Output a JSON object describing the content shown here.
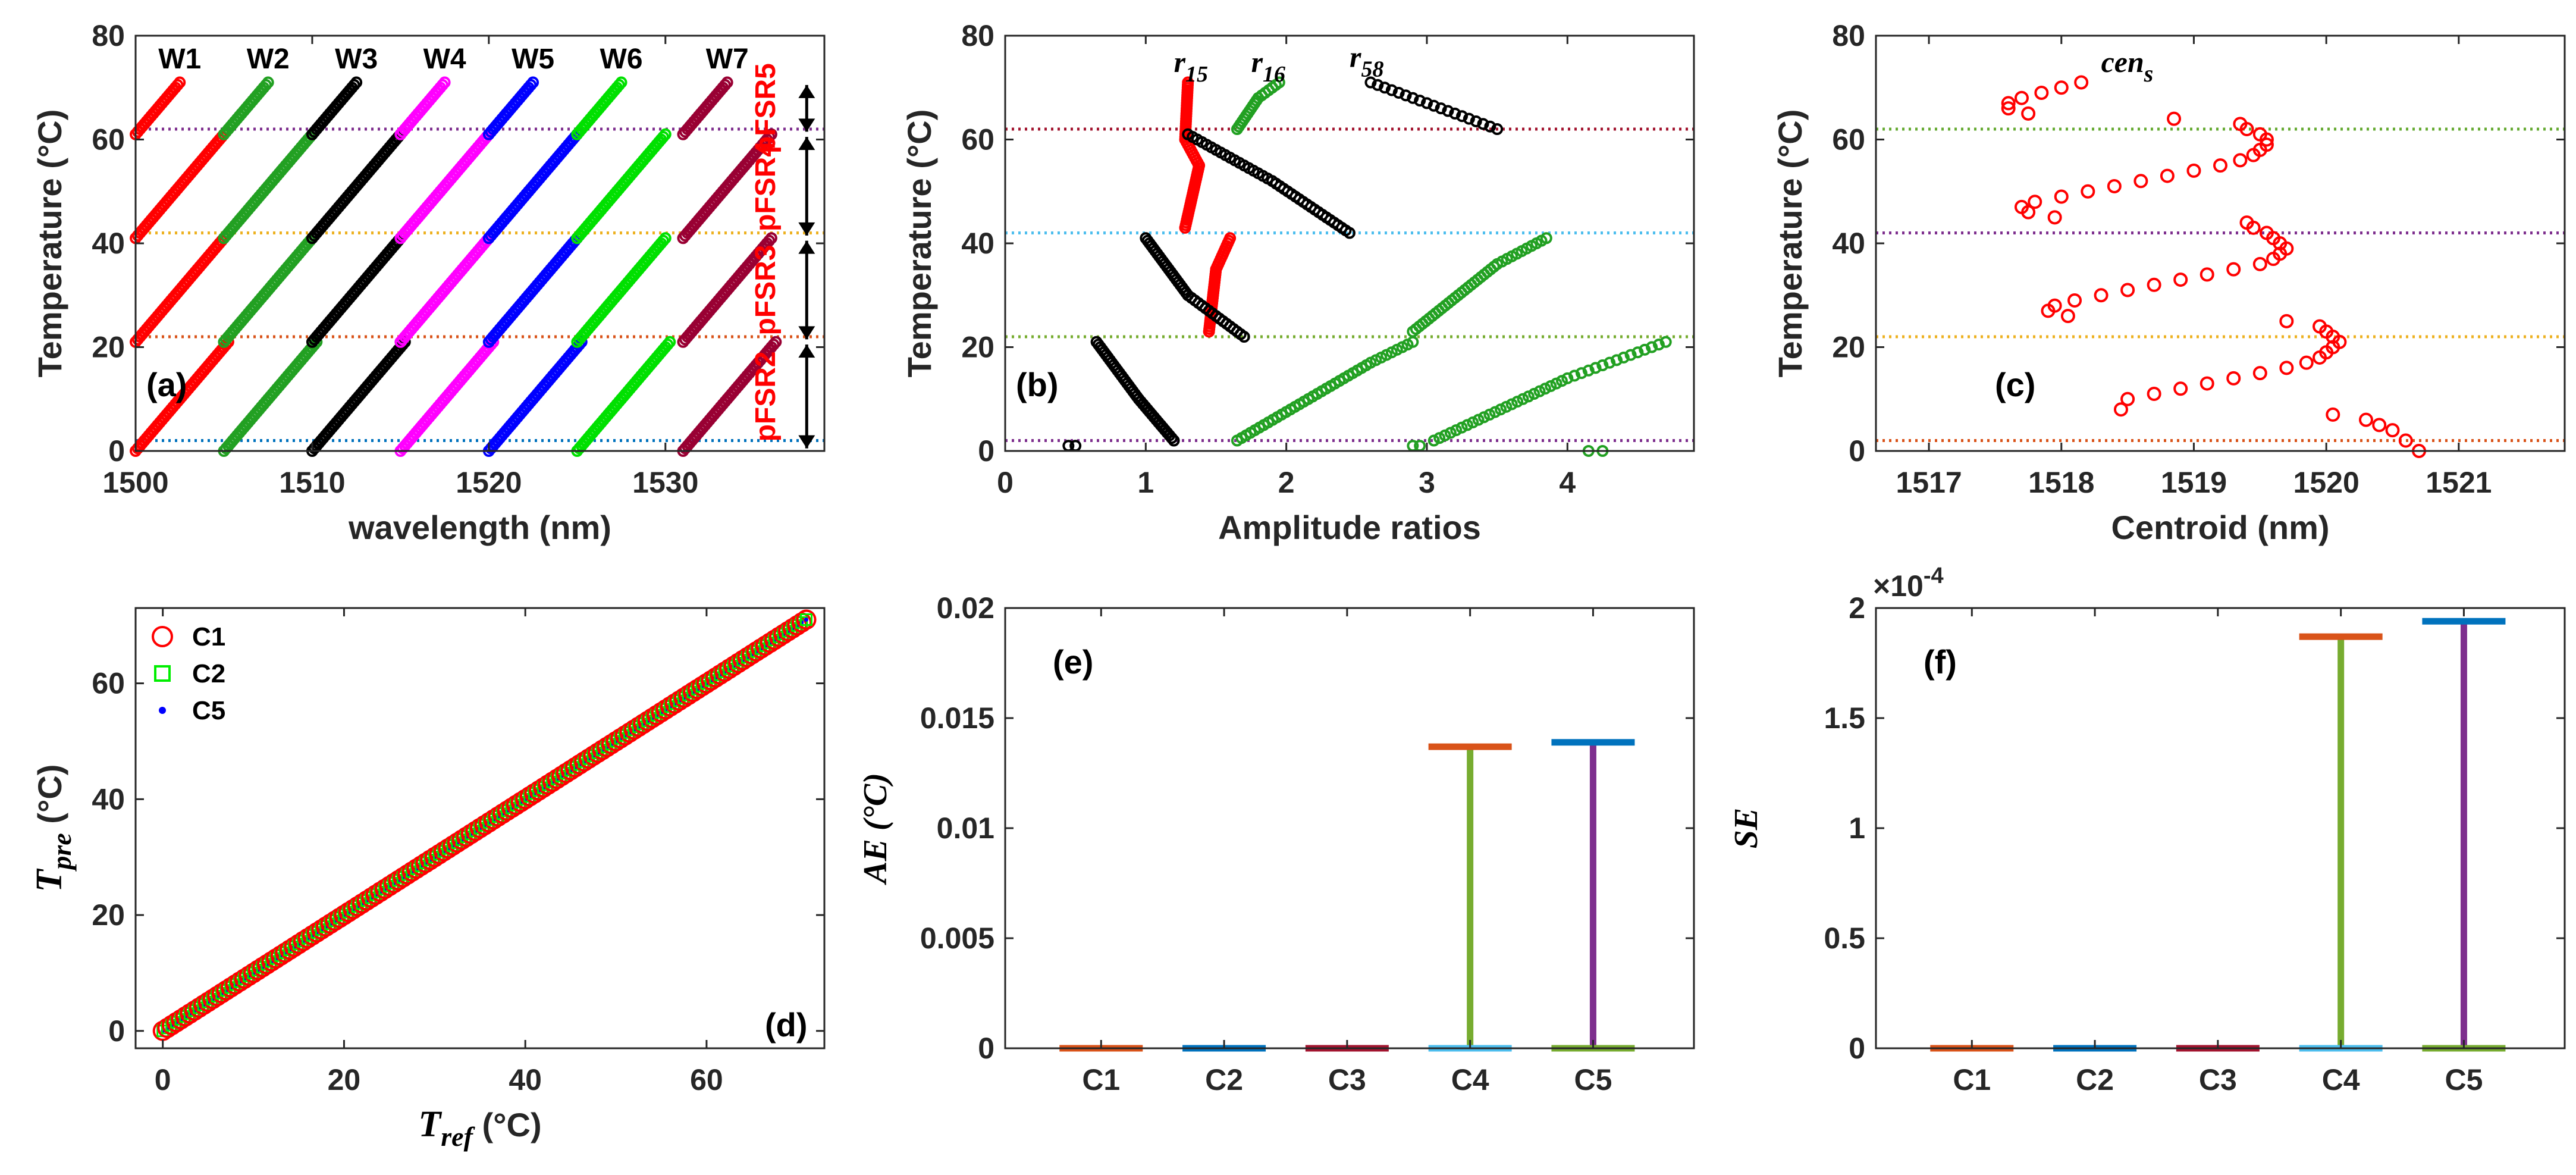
{
  "figure": {
    "palette": {
      "red": "#ff0000",
      "green": "#22a022",
      "black": "#000000",
      "magenta": "#ff00ff",
      "blue": "#0000ff",
      "lime": "#00e000",
      "maroon": "#990033",
      "purple": "#7e2f8e",
      "orange": "#edb120",
      "darkorange": "#d95319",
      "mblue": "#0072bd",
      "dkred": "#a2142f",
      "olive": "#77ac30",
      "cyan": "#4dbeee",
      "teal": "#33bbdd",
      "olivegreen": "#66aa33"
    }
  },
  "chart_data": [
    {
      "id": "a",
      "type": "scatter",
      "panel_label": "(a)",
      "xlabel": "wavelength (nm)",
      "ylabel": "Temperature (°C)",
      "xlim": [
        1500,
        1539
      ],
      "ylim": [
        0,
        80
      ],
      "xticks": [
        1500,
        1510,
        1520,
        1530
      ],
      "yticks": [
        0,
        20,
        40,
        60,
        80
      ],
      "sensitivity_nm_per_C": 0.1,
      "segment_breaks_C": [
        0,
        21,
        41,
        61,
        71
      ],
      "series": [
        {
          "name": "W1",
          "color": "red",
          "start_nm": 1500
        },
        {
          "name": "W2",
          "color": "green",
          "start_nm": 1505
        },
        {
          "name": "W3",
          "color": "black",
          "start_nm": 1510
        },
        {
          "name": "W4",
          "color": "magenta",
          "start_nm": 1515
        },
        {
          "name": "W5",
          "color": "blue",
          "start_nm": 1520
        },
        {
          "name": "W6",
          "color": "lime",
          "start_nm": 1525
        },
        {
          "name": "W7",
          "color": "maroon",
          "start_nm": 1531
        }
      ],
      "hlines": [
        {
          "y": 2,
          "color": "mblue"
        },
        {
          "y": 22,
          "color": "darkorange"
        },
        {
          "y": 42,
          "color": "orange"
        },
        {
          "y": 62,
          "color": "purple"
        }
      ],
      "side_labels": [
        "pFSR2",
        "pFSR3",
        "pFSR4",
        "pFSR5"
      ],
      "side_label_color": "red"
    },
    {
      "id": "b",
      "type": "scatter",
      "panel_label": "(b)",
      "xlabel": "Amplitude ratios",
      "ylabel": "Temperature (°C)",
      "xlim": [
        0,
        4.9
      ],
      "ylim": [
        0,
        80
      ],
      "xticks": [
        0,
        1,
        2,
        3,
        4
      ],
      "yticks": [
        0,
        20,
        40,
        60,
        80
      ],
      "annotations": [
        {
          "base": "r",
          "sub": "15",
          "x": 1.2,
          "y": 73
        },
        {
          "base": "r",
          "sub": "16",
          "x": 1.75,
          "y": 73
        },
        {
          "base": "r",
          "sub": "58",
          "x": 2.45,
          "y": 74
        }
      ],
      "series": [
        {
          "name": "r15",
          "color": "red",
          "segments": [
            [
              1.45,
              23,
              1.5,
              35,
              1.6,
              41
            ],
            [
              1.28,
              43,
              1.38,
              55,
              1.28,
              60,
              1.3,
              71
            ]
          ]
        },
        {
          "name": "r16",
          "color": "green",
          "segments": [
            [
              1.65,
              2,
              2.6,
              17,
              2.9,
              21
            ],
            [
              2.9,
              23,
              3.5,
              36,
              3.85,
              41
            ],
            [
              1.65,
              62,
              1.8,
              68,
              1.95,
              71
            ],
            [
              2.9,
              1,
              2.95,
              1
            ],
            [
              3.05,
              2,
              4.0,
              14,
              4.7,
              21
            ],
            [
              4.15,
              0,
              4.25,
              0
            ]
          ]
        },
        {
          "name": "r58",
          "color": "black",
          "segments": [
            [
              0.45,
              1,
              0.5,
              1
            ],
            [
              0.65,
              21,
              0.95,
              10,
              1.2,
              2
            ],
            [
              1.0,
              41,
              1.3,
              30,
              1.7,
              22
            ],
            [
              1.3,
              61,
              1.9,
              52,
              2.45,
              42
            ],
            [
              2.6,
              71,
              3.1,
              66,
              3.5,
              62
            ]
          ]
        }
      ],
      "hlines": [
        {
          "y": 2,
          "color": "purple"
        },
        {
          "y": 22,
          "color": "olive"
        },
        {
          "y": 42,
          "color": "cyan"
        },
        {
          "y": 62,
          "color": "dkred"
        }
      ]
    },
    {
      "id": "c",
      "type": "scatter",
      "panel_label": "(c)",
      "xlabel": "Centroid (nm)",
      "ylabel": "Temperature (°C)",
      "xlim": [
        1516.6,
        1521.8
      ],
      "ylim": [
        0,
        80
      ],
      "xticks": [
        1517,
        1518,
        1519,
        1520,
        1521
      ],
      "yticks": [
        0,
        20,
        40,
        60,
        80
      ],
      "annotation": {
        "base": "cen",
        "sub": "s",
        "x": 1518.3,
        "y": 73
      },
      "series_color": "red",
      "points": [
        [
          1520.7,
          0
        ],
        [
          1520.6,
          2
        ],
        [
          1520.5,
          4
        ],
        [
          1520.4,
          5
        ],
        [
          1520.3,
          6
        ],
        [
          1520.05,
          7
        ],
        [
          1518.45,
          8
        ],
        [
          1518.5,
          10
        ],
        [
          1518.7,
          11
        ],
        [
          1518.9,
          12
        ],
        [
          1519.1,
          13
        ],
        [
          1519.3,
          14
        ],
        [
          1519.5,
          15
        ],
        [
          1519.7,
          16
        ],
        [
          1519.85,
          17
        ],
        [
          1519.95,
          18
        ],
        [
          1520.0,
          19
        ],
        [
          1520.05,
          20
        ],
        [
          1520.1,
          21
        ],
        [
          1520.05,
          22
        ],
        [
          1520.0,
          23
        ],
        [
          1519.95,
          24
        ],
        [
          1519.7,
          25
        ],
        [
          1518.05,
          26
        ],
        [
          1517.9,
          27
        ],
        [
          1517.95,
          28
        ],
        [
          1518.1,
          29
        ],
        [
          1518.3,
          30
        ],
        [
          1518.5,
          31
        ],
        [
          1518.7,
          32
        ],
        [
          1518.9,
          33
        ],
        [
          1519.1,
          34
        ],
        [
          1519.3,
          35
        ],
        [
          1519.5,
          36
        ],
        [
          1519.6,
          37
        ],
        [
          1519.65,
          38
        ],
        [
          1519.7,
          39
        ],
        [
          1519.65,
          40
        ],
        [
          1519.6,
          41
        ],
        [
          1519.55,
          42
        ],
        [
          1519.45,
          43
        ],
        [
          1519.4,
          44
        ],
        [
          1517.95,
          45
        ],
        [
          1517.75,
          46
        ],
        [
          1517.7,
          47
        ],
        [
          1517.8,
          48
        ],
        [
          1518.0,
          49
        ],
        [
          1518.2,
          50
        ],
        [
          1518.4,
          51
        ],
        [
          1518.6,
          52
        ],
        [
          1518.8,
          53
        ],
        [
          1519.0,
          54
        ],
        [
          1519.2,
          55
        ],
        [
          1519.35,
          56
        ],
        [
          1519.45,
          57
        ],
        [
          1519.5,
          58
        ],
        [
          1519.55,
          59
        ],
        [
          1519.55,
          60
        ],
        [
          1519.5,
          61
        ],
        [
          1519.4,
          62
        ],
        [
          1519.35,
          63
        ],
        [
          1518.85,
          64
        ],
        [
          1517.75,
          65
        ],
        [
          1517.6,
          66
        ],
        [
          1517.6,
          67
        ],
        [
          1517.7,
          68
        ],
        [
          1517.85,
          69
        ],
        [
          1518.0,
          70
        ],
        [
          1518.15,
          71
        ]
      ],
      "hlines": [
        {
          "y": 2,
          "color": "darkorange"
        },
        {
          "y": 22,
          "color": "orange"
        },
        {
          "y": 42,
          "color": "purple"
        },
        {
          "y": 62,
          "color": "olivegreen"
        }
      ]
    },
    {
      "id": "d",
      "type": "scatter",
      "panel_label": "(d)",
      "xlabel_base": "T",
      "xlabel_sub": "ref",
      "xlabel_unit": "(°C)",
      "ylabel_base": "T",
      "ylabel_sub": "pre",
      "ylabel_unit": "(°C)",
      "xlim": [
        -3,
        73
      ],
      "ylim": [
        -3,
        73
      ],
      "xticks": [
        0,
        20,
        40,
        60
      ],
      "yticks": [
        0,
        20,
        40,
        60
      ],
      "x_range": [
        0,
        71
      ],
      "step": 0.5,
      "legend": [
        {
          "label": "C1",
          "marker": "circle",
          "color": "red"
        },
        {
          "label": "C2",
          "marker": "square",
          "color": "#00ee00"
        },
        {
          "label": "C5",
          "marker": "dot",
          "color": "blue"
        }
      ]
    },
    {
      "id": "e",
      "type": "bar",
      "panel_label": "(e)",
      "ylabel": "AE (°C)",
      "categories": [
        "C1",
        "C2",
        "C3",
        "C4",
        "C5"
      ],
      "ylim": [
        0,
        0.02
      ],
      "yticks": [
        0,
        0.005,
        0.01,
        0.015,
        0.02
      ],
      "ytick_labels": [
        "0",
        "0.005",
        "0.01",
        "0.015",
        "0.02"
      ],
      "bars": [
        {
          "cat": "C1",
          "min": 0,
          "max": 0,
          "stem": "darkorange",
          "cap_lo": "darkorange",
          "cap_hi": "darkorange"
        },
        {
          "cat": "C2",
          "min": 0,
          "max": 0,
          "stem": "mblue",
          "cap_lo": "mblue",
          "cap_hi": "mblue"
        },
        {
          "cat": "C3",
          "min": 0,
          "max": 0,
          "stem": "dkred",
          "cap_lo": "dkred",
          "cap_hi": "dkred"
        },
        {
          "cat": "C4",
          "min": 0,
          "max": 0.0137,
          "stem": "olive",
          "cap_lo": "cyan",
          "cap_hi": "darkorange"
        },
        {
          "cat": "C5",
          "min": 0,
          "max": 0.0139,
          "stem": "purple",
          "cap_lo": "olive",
          "cap_hi": "mblue"
        }
      ]
    },
    {
      "id": "f",
      "type": "bar",
      "panel_label": "(f)",
      "ylabel": "SE",
      "exponent_label": "×10",
      "exponent": "-4",
      "categories": [
        "C1",
        "C2",
        "C3",
        "C4",
        "C5"
      ],
      "ylim": [
        0,
        2
      ],
      "yticks": [
        0,
        0.5,
        1,
        1.5,
        2
      ],
      "ytick_labels": [
        "0",
        "0.5",
        "1",
        "1.5",
        "2"
      ],
      "bars": [
        {
          "cat": "C1",
          "min": 0,
          "max": 0,
          "stem": "darkorange",
          "cap_lo": "darkorange",
          "cap_hi": "darkorange"
        },
        {
          "cat": "C2",
          "min": 0,
          "max": 0,
          "stem": "mblue",
          "cap_lo": "mblue",
          "cap_hi": "mblue"
        },
        {
          "cat": "C3",
          "min": 0,
          "max": 0,
          "stem": "dkred",
          "cap_lo": "dkred",
          "cap_hi": "dkred"
        },
        {
          "cat": "C4",
          "min": 0,
          "max": 1.87,
          "stem": "olive",
          "cap_lo": "cyan",
          "cap_hi": "darkorange"
        },
        {
          "cat": "C5",
          "min": 0,
          "max": 1.94,
          "stem": "purple",
          "cap_lo": "olive",
          "cap_hi": "mblue"
        }
      ]
    }
  ]
}
